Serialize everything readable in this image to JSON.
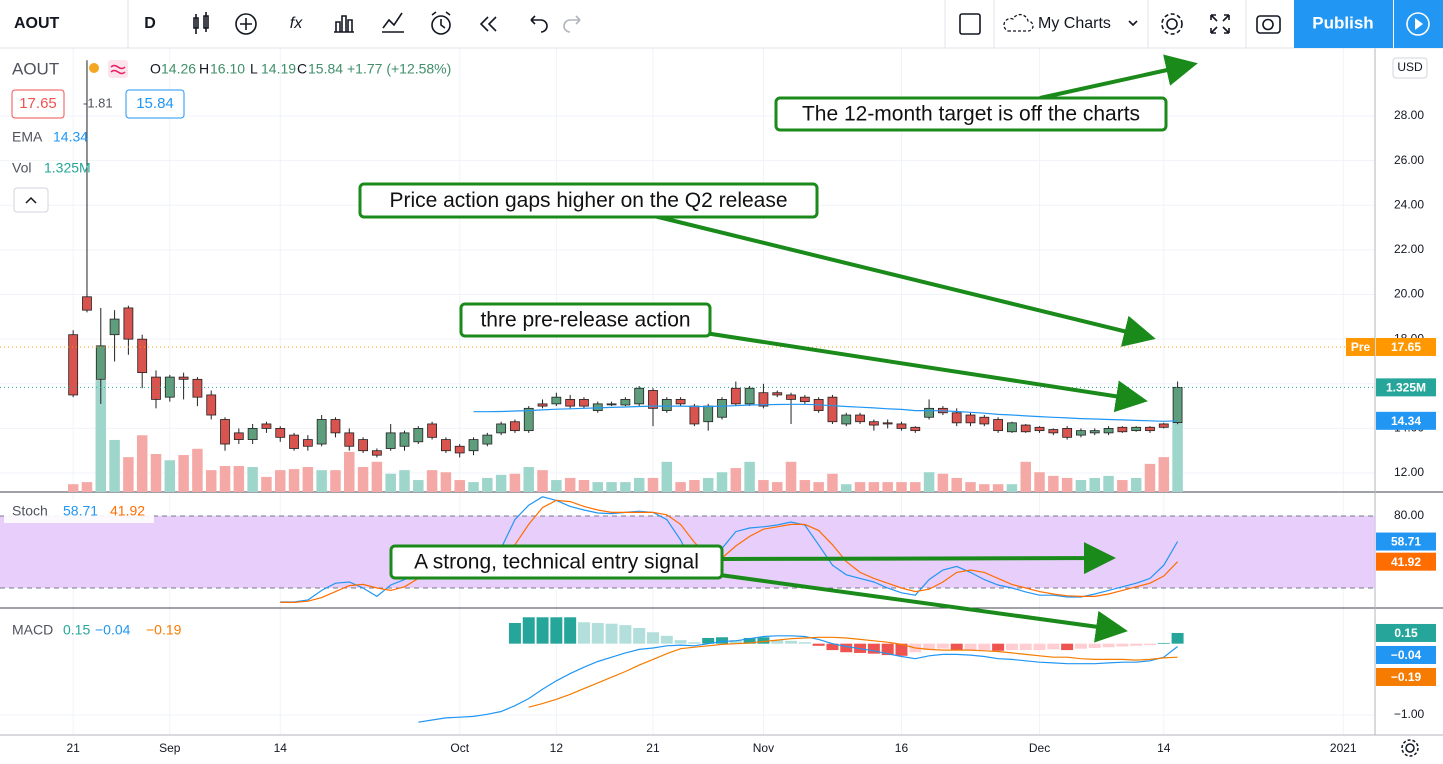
{
  "toolbar": {
    "symbol": "AOUT",
    "interval": "D",
    "layouts": "My Charts",
    "publish": "Publish"
  },
  "legend": {
    "symbol": "AOUT",
    "ohlc": [
      [
        "O",
        "14.26"
      ],
      [
        "H",
        "16.10"
      ],
      [
        "L",
        "14.19"
      ],
      [
        "C",
        "15.84"
      ]
    ],
    "change": "+1.77 (+12.58%)",
    "spread": -1.81,
    "ema": "EMA",
    "vol": "Vol",
    "currency": "USD"
  },
  "chart_data": {
    "type": "candlestick",
    "xlim": [
      -5.3,
      94.3
    ],
    "xticks": [
      {
        "value": 0,
        "label": "21"
      },
      {
        "value": 7,
        "label": "Sep"
      },
      {
        "value": 15,
        "label": "14"
      },
      {
        "value": 28,
        "label": "Oct"
      },
      {
        "value": 35,
        "label": "12"
      },
      {
        "value": 42,
        "label": "21"
      },
      {
        "value": 50,
        "label": "Nov"
      },
      {
        "value": 60,
        "label": "16"
      },
      {
        "value": 70,
        "label": "Dec"
      },
      {
        "value": 79,
        "label": "14"
      },
      {
        "value": 92,
        "label": "2021"
      }
    ],
    "ylim": [
      11.15,
      31.05
    ],
    "yticks": [
      {
        "value": 12,
        "label": "12.00"
      },
      {
        "value": 14,
        "label": "14.00"
      },
      {
        "value": 16,
        "label": "16.00"
      },
      {
        "value": 18,
        "label": "18.00"
      },
      {
        "value": 20,
        "label": "20.00"
      },
      {
        "value": 22,
        "label": "22.00"
      },
      {
        "value": 24,
        "label": "24.00"
      },
      {
        "value": 26,
        "label": "26.00"
      },
      {
        "value": 28,
        "label": "28.00"
      }
    ],
    "grid": true,
    "up_color": "#5e9e7c",
    "down_color": "#d9534f",
    "candles": [
      [
        18.2,
        18.4,
        15.4,
        15.5
      ],
      [
        19.9,
        30.5,
        19.2,
        19.3
      ],
      [
        16.2,
        19.4,
        15.1,
        17.7
      ],
      [
        18.2,
        19.3,
        17.0,
        18.9
      ],
      [
        19.4,
        19.5,
        17.3,
        18.0
      ],
      [
        18.0,
        18.2,
        15.8,
        16.5
      ],
      [
        16.3,
        16.6,
        14.9,
        15.3
      ],
      [
        15.4,
        16.4,
        15.2,
        16.3
      ],
      [
        16.3,
        16.5,
        15.3,
        16.2
      ],
      [
        16.2,
        16.3,
        15.0,
        15.4
      ],
      [
        15.5,
        15.7,
        14.4,
        14.6
      ],
      [
        14.4,
        14.5,
        13.0,
        13.3
      ],
      [
        13.8,
        14.0,
        13.3,
        13.5
      ],
      [
        13.5,
        14.2,
        13.3,
        14.0
      ],
      [
        14.2,
        14.3,
        13.8,
        14.0
      ],
      [
        14.0,
        14.1,
        13.4,
        13.6
      ],
      [
        13.7,
        13.8,
        13.0,
        13.1
      ],
      [
        13.5,
        13.7,
        13.0,
        13.2
      ],
      [
        13.3,
        14.6,
        13.2,
        14.4
      ],
      [
        14.4,
        14.5,
        13.6,
        13.8
      ],
      [
        13.8,
        14.0,
        13.0,
        13.2
      ],
      [
        13.5,
        13.6,
        12.9,
        13.0
      ],
      [
        13.0,
        13.1,
        12.7,
        12.8
      ],
      [
        13.1,
        14.2,
        13.0,
        13.8
      ],
      [
        13.2,
        13.9,
        13.0,
        13.8
      ],
      [
        13.4,
        14.1,
        13.3,
        14.0
      ],
      [
        14.2,
        14.3,
        13.5,
        13.6
      ],
      [
        13.5,
        13.6,
        12.9,
        13.0
      ],
      [
        13.2,
        13.3,
        12.7,
        12.9
      ],
      [
        13.0,
        13.6,
        12.8,
        13.5
      ],
      [
        13.3,
        13.8,
        13.2,
        13.7
      ],
      [
        13.8,
        14.3,
        13.7,
        14.2
      ],
      [
        14.3,
        14.4,
        13.8,
        13.9
      ],
      [
        13.9,
        15.0,
        13.8,
        14.9
      ],
      [
        15.1,
        15.3,
        14.9,
        15.0
      ],
      [
        15.1,
        15.6,
        15.0,
        15.4
      ],
      [
        15.3,
        15.5,
        14.9,
        15.0
      ],
      [
        15.3,
        15.4,
        14.9,
        15.0
      ],
      [
        14.8,
        15.2,
        14.7,
        15.1
      ],
      [
        15.1,
        15.2,
        15.0,
        15.1
      ],
      [
        15.05,
        15.4,
        15.0,
        15.3
      ],
      [
        15.1,
        15.9,
        15.0,
        15.8
      ],
      [
        15.7,
        15.8,
        14.1,
        14.9
      ],
      [
        14.8,
        15.4,
        14.7,
        15.3
      ],
      [
        15.3,
        15.4,
        15.0,
        15.1
      ],
      [
        15.0,
        15.1,
        14.1,
        14.2
      ],
      [
        14.3,
        15.1,
        13.9,
        15.0
      ],
      [
        14.5,
        15.4,
        14.4,
        15.3
      ],
      [
        15.8,
        16.1,
        15.0,
        15.1
      ],
      [
        15.1,
        15.9,
        15.0,
        15.8
      ],
      [
        15.6,
        16.0,
        14.9,
        15.0
      ],
      [
        15.6,
        15.7,
        15.4,
        15.5
      ],
      [
        15.5,
        15.6,
        14.2,
        15.3
      ],
      [
        15.4,
        15.5,
        15.1,
        15.2
      ],
      [
        15.3,
        15.4,
        14.7,
        14.8
      ],
      [
        15.4,
        15.5,
        14.2,
        14.3
      ],
      [
        14.2,
        14.7,
        14.1,
        14.6
      ],
      [
        14.6,
        14.7,
        14.2,
        14.3
      ],
      [
        14.3,
        14.4,
        13.9,
        14.15
      ],
      [
        14.25,
        14.4,
        14.0,
        14.2
      ],
      [
        14.2,
        14.3,
        13.9,
        14.0
      ],
      [
        14.05,
        14.1,
        13.8,
        13.9
      ],
      [
        14.5,
        15.3,
        14.4,
        14.9
      ],
      [
        14.9,
        15.0,
        14.6,
        14.7
      ],
      [
        14.7,
        14.9,
        14.1,
        14.25
      ],
      [
        14.6,
        14.7,
        14.1,
        14.25
      ],
      [
        14.5,
        14.6,
        14.1,
        14.2
      ],
      [
        14.4,
        14.5,
        13.8,
        13.9
      ],
      [
        13.85,
        14.3,
        13.8,
        14.25
      ],
      [
        14.15,
        14.2,
        13.8,
        13.85
      ],
      [
        14.05,
        14.1,
        13.8,
        13.9
      ],
      [
        13.95,
        14.0,
        13.7,
        13.8
      ],
      [
        14.0,
        14.1,
        13.5,
        13.6
      ],
      [
        13.7,
        14.0,
        13.6,
        13.9
      ],
      [
        13.8,
        14.0,
        13.7,
        13.9
      ],
      [
        13.8,
        14.1,
        13.7,
        14.0
      ],
      [
        14.05,
        14.1,
        13.8,
        13.85
      ],
      [
        13.9,
        14.1,
        13.85,
        14.05
      ],
      [
        14.05,
        14.1,
        13.8,
        13.9
      ],
      [
        14.2,
        14.25,
        14.0,
        14.05
      ],
      [
        14.26,
        16.1,
        14.19,
        15.84
      ]
    ],
    "ema": {
      "name": "EMA",
      "color": "#2196f3",
      "values": [
        null,
        null,
        null,
        null,
        null,
        null,
        null,
        null,
        null,
        null,
        null,
        null,
        null,
        null,
        null,
        null,
        null,
        null,
        null,
        null,
        null,
        null,
        null,
        null,
        null,
        null,
        null,
        null,
        null,
        14.75,
        14.75,
        14.76,
        14.78,
        14.8,
        14.83,
        14.86,
        14.88,
        14.9,
        14.92,
        14.94,
        14.96,
        14.98,
        15.0,
        15.0,
        15.0,
        14.98,
        14.98,
        15.0,
        15.02,
        15.05,
        15.06,
        15.07,
        15.08,
        15.08,
        15.06,
        15.02,
        14.98,
        14.95,
        14.92,
        14.88,
        14.85,
        14.8,
        14.8,
        14.79,
        14.76,
        14.72,
        14.68,
        14.63,
        14.6,
        14.56,
        14.53,
        14.5,
        14.47,
        14.44,
        14.42,
        14.4,
        14.38,
        14.36,
        14.34,
        14.32,
        14.34
      ]
    },
    "volume": {
      "ylim": [
        0,
        8.53
      ],
      "up_color": "#9fd6cc",
      "down_color": "#f5a9a6",
      "label": "1.325M",
      "values": [
        0.15,
        0.19,
        2.15,
        1.0,
        0.67,
        1.09,
        0.73,
        0.61,
        0.71,
        0.83,
        0.42,
        0.5,
        0.5,
        0.48,
        0.29,
        0.42,
        0.44,
        0.48,
        0.42,
        0.42,
        0.77,
        0.48,
        0.58,
        0.35,
        0.42,
        0.23,
        0.42,
        0.38,
        0.23,
        0.19,
        0.27,
        0.33,
        0.35,
        0.48,
        0.42,
        0.23,
        0.27,
        0.23,
        0.19,
        0.19,
        0.19,
        0.27,
        0.27,
        0.58,
        0.19,
        0.23,
        0.27,
        0.38,
        0.46,
        0.58,
        0.23,
        0.19,
        0.58,
        0.23,
        0.19,
        0.35,
        0.15,
        0.19,
        0.19,
        0.19,
        0.19,
        0.19,
        0.38,
        0.35,
        0.27,
        0.19,
        0.15,
        0.15,
        0.15,
        0.58,
        0.38,
        0.31,
        0.27,
        0.23,
        0.27,
        0.31,
        0.23,
        0.27,
        0.54,
        0.67,
        1.325
      ]
    },
    "premarket": {
      "label": "Pre",
      "value": 17.65,
      "color": "#ff9800"
    },
    "last_color": "#26a69a",
    "annotations": [
      "The 12-month target is off the charts",
      "Price action gaps higher on the Q2 release",
      "thre pre-release action",
      "A strong, technical entry signal"
    ],
    "stoch": {
      "name": "Stoch",
      "ylim": [
        3.3,
        100
      ],
      "yticks": [
        {
          "value": 80,
          "label": "80.00"
        }
      ],
      "band": [
        20,
        80
      ],
      "band_color": "#e4c6fa",
      "series": [
        {
          "color": "#2196f3",
          "values": [
            null,
            null,
            null,
            null,
            null,
            null,
            null,
            null,
            null,
            null,
            null,
            null,
            null,
            null,
            null,
            8.3,
            8.3,
            10,
            18,
            24,
            25,
            20,
            13,
            22.5,
            27,
            35,
            43,
            39,
            35,
            31,
            39,
            53,
            77,
            89,
            96,
            93,
            88,
            85,
            82.5,
            82,
            83,
            84,
            83,
            77,
            60,
            37,
            45,
            53,
            67,
            70,
            71,
            72.5,
            75,
            72.5,
            56,
            39,
            31,
            28,
            25,
            20,
            16,
            14,
            27,
            35,
            38,
            33,
            27,
            22.5,
            20,
            16.7,
            14,
            14,
            12.5,
            12.5,
            15,
            18,
            21,
            24,
            28,
            39,
            58.71
          ]
        },
        {
          "color": "#ff6d00",
          "values": [
            null,
            null,
            null,
            null,
            null,
            null,
            null,
            null,
            null,
            null,
            null,
            null,
            null,
            null,
            null,
            8,
            8,
            9,
            12,
            17,
            22,
            23,
            20,
            18,
            21,
            28,
            35,
            39,
            39,
            35,
            35,
            41,
            56,
            73,
            87,
            93,
            92,
            88,
            85,
            83,
            83,
            83,
            83,
            81,
            73,
            58,
            47,
            45,
            55,
            63,
            69,
            71,
            73,
            73,
            68,
            56,
            42,
            33,
            28,
            24,
            20,
            17,
            19,
            25,
            33,
            35,
            33,
            28,
            23,
            20,
            17,
            15,
            13.5,
            13,
            13,
            15,
            18,
            21,
            24,
            30,
            41.92
          ]
        }
      ]
    },
    "macd": {
      "name": "MACD",
      "ylim": [
        -1.28,
        0.5
      ],
      "yticks": [
        {
          "value": -1,
          "label": "−1.00"
        }
      ],
      "legend_labels": [
        "0.15",
        "−0.04",
        "−0.19"
      ],
      "hist_colors": [
        "#26a69a",
        "#b2dfdb",
        "#ffcdd2",
        "#ef5350"
      ],
      "histogram": [
        null,
        null,
        null,
        null,
        null,
        null,
        null,
        null,
        null,
        null,
        null,
        null,
        null,
        null,
        null,
        null,
        null,
        null,
        null,
        null,
        null,
        null,
        null,
        null,
        null,
        null,
        null,
        null,
        null,
        null,
        null,
        null,
        0.29,
        0.37,
        0.37,
        0.37,
        0.37,
        0.3,
        0.29,
        0.28,
        0.26,
        0.22,
        0.16,
        0.11,
        0.05,
        0.02,
        0.08,
        0.09,
        0.05,
        0.08,
        0.09,
        0.05,
        0.04,
        0.02,
        -0.03,
        -0.09,
        -0.12,
        -0.13,
        -0.14,
        -0.16,
        -0.17,
        -0.12,
        -0.09,
        -0.07,
        -0.09,
        -0.09,
        -0.09,
        -0.1,
        -0.09,
        -0.09,
        -0.09,
        -0.08,
        -0.09,
        -0.07,
        -0.06,
        -0.05,
        -0.04,
        -0.03,
        -0.02,
        0.01,
        0.15
      ],
      "series": [
        {
          "color": "#2196f3",
          "values": [
            null,
            null,
            null,
            null,
            null,
            null,
            null,
            null,
            null,
            null,
            null,
            null,
            null,
            null,
            null,
            null,
            null,
            null,
            null,
            null,
            null,
            null,
            null,
            null,
            null,
            -1.1,
            -1.07,
            -1.04,
            -1.03,
            -1.02,
            -0.99,
            -0.95,
            -0.87,
            -0.77,
            -0.64,
            -0.52,
            -0.42,
            -0.33,
            -0.25,
            -0.19,
            -0.13,
            -0.08,
            -0.06,
            -0.03,
            -0.02,
            -0.03,
            0.0,
            0.03,
            0.04,
            0.07,
            0.1,
            0.11,
            0.11,
            0.1,
            0.06,
            0.0,
            -0.04,
            -0.07,
            -0.1,
            -0.14,
            -0.18,
            -0.21,
            -0.17,
            -0.15,
            -0.15,
            -0.16,
            -0.18,
            -0.21,
            -0.22,
            -0.24,
            -0.26,
            -0.27,
            -0.28,
            -0.28,
            -0.28,
            -0.27,
            -0.26,
            -0.26,
            -0.24,
            -0.19,
            -0.04
          ]
        },
        {
          "color": "#f57c00",
          "values": [
            null,
            null,
            null,
            null,
            null,
            null,
            null,
            null,
            null,
            null,
            null,
            null,
            null,
            null,
            null,
            null,
            null,
            null,
            null,
            null,
            null,
            null,
            null,
            null,
            null,
            null,
            null,
            null,
            null,
            null,
            null,
            null,
            null,
            -0.89,
            -0.84,
            -0.78,
            -0.71,
            -0.63,
            -0.55,
            -0.47,
            -0.39,
            -0.3,
            -0.22,
            -0.14,
            -0.07,
            -0.05,
            -0.03,
            -0.01,
            0.0,
            0.01,
            0.03,
            0.05,
            0.07,
            0.08,
            0.09,
            0.09,
            0.08,
            0.06,
            0.04,
            0.02,
            -0.01,
            -0.06,
            -0.08,
            -0.09,
            -0.09,
            -0.09,
            -0.1,
            -0.11,
            -0.13,
            -0.15,
            -0.17,
            -0.19,
            -0.19,
            -0.21,
            -0.22,
            -0.22,
            -0.22,
            -0.23,
            -0.22,
            -0.2,
            -0.19
          ]
        }
      ]
    }
  }
}
